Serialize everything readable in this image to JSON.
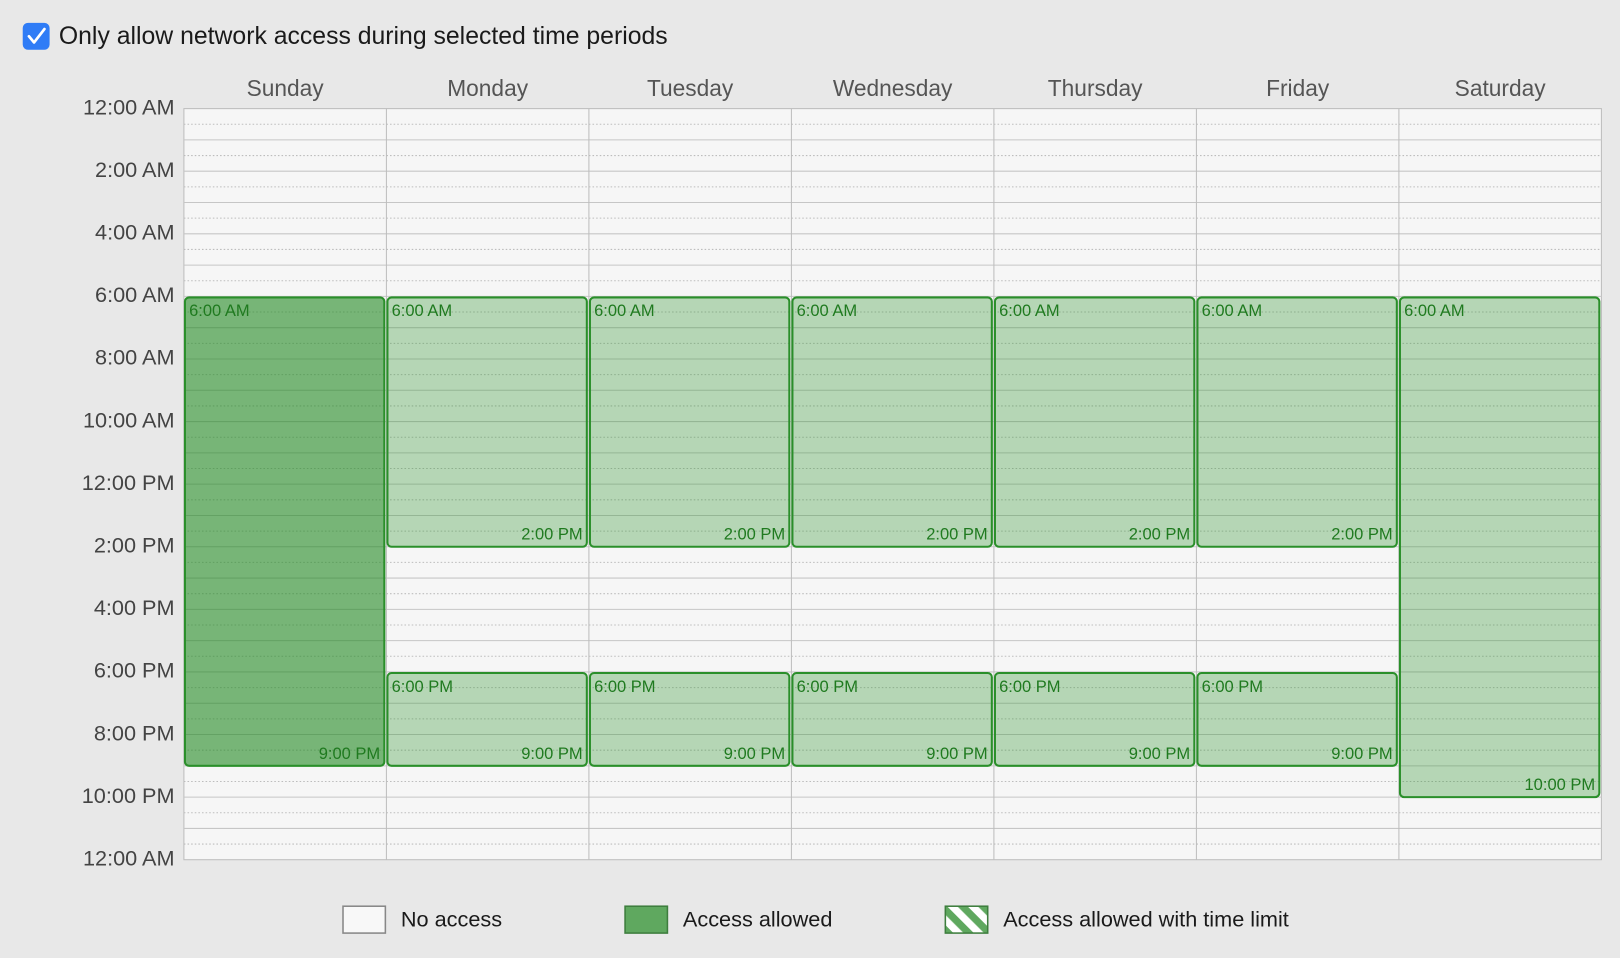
{
  "checkbox": {
    "label": "Only allow network access during selected time periods",
    "checked": true
  },
  "days": [
    "Sunday",
    "Monday",
    "Tuesday",
    "Wednesday",
    "Thursday",
    "Friday",
    "Saturday"
  ],
  "time_labels": [
    "12:00 AM",
    "2:00 AM",
    "4:00 AM",
    "6:00 AM",
    "8:00 AM",
    "10:00 AM",
    "12:00 PM",
    "2:00 PM",
    "4:00 PM",
    "6:00 PM",
    "8:00 PM",
    "10:00 PM",
    "12:00 AM"
  ],
  "blocks": [
    {
      "day": 0,
      "selected": true,
      "start": {
        "value": 6,
        "label": "6:00 AM"
      },
      "end": {
        "value": 21,
        "label": "9:00 PM"
      }
    },
    {
      "day": 1,
      "start": {
        "value": 6,
        "label": "6:00 AM"
      },
      "end": {
        "value": 14,
        "label": "2:00 PM"
      }
    },
    {
      "day": 1,
      "start": {
        "value": 18,
        "label": "6:00 PM"
      },
      "end": {
        "value": 21,
        "label": "9:00 PM"
      }
    },
    {
      "day": 2,
      "start": {
        "value": 6,
        "label": "6:00 AM"
      },
      "end": {
        "value": 14,
        "label": "2:00 PM"
      }
    },
    {
      "day": 2,
      "start": {
        "value": 18,
        "label": "6:00 PM"
      },
      "end": {
        "value": 21,
        "label": "9:00 PM"
      }
    },
    {
      "day": 3,
      "start": {
        "value": 6,
        "label": "6:00 AM"
      },
      "end": {
        "value": 14,
        "label": "2:00 PM"
      }
    },
    {
      "day": 3,
      "start": {
        "value": 18,
        "label": "6:00 PM"
      },
      "end": {
        "value": 21,
        "label": "9:00 PM"
      }
    },
    {
      "day": 4,
      "start": {
        "value": 6,
        "label": "6:00 AM"
      },
      "end": {
        "value": 14,
        "label": "2:00 PM"
      }
    },
    {
      "day": 4,
      "start": {
        "value": 18,
        "label": "6:00 PM"
      },
      "end": {
        "value": 21,
        "label": "9:00 PM"
      }
    },
    {
      "day": 5,
      "start": {
        "value": 6,
        "label": "6:00 AM"
      },
      "end": {
        "value": 14,
        "label": "2:00 PM"
      }
    },
    {
      "day": 5,
      "start": {
        "value": 18,
        "label": "6:00 PM"
      },
      "end": {
        "value": 21,
        "label": "9:00 PM"
      }
    },
    {
      "day": 6,
      "start": {
        "value": 6,
        "label": "6:00 AM"
      },
      "end": {
        "value": 22,
        "label": "10:00 PM"
      }
    }
  ],
  "legend": [
    {
      "label": "No access",
      "kind": "none"
    },
    {
      "label": "Access allowed",
      "kind": "allowed"
    },
    {
      "label": "Access allowed with time limit",
      "kind": "limited"
    }
  ]
}
